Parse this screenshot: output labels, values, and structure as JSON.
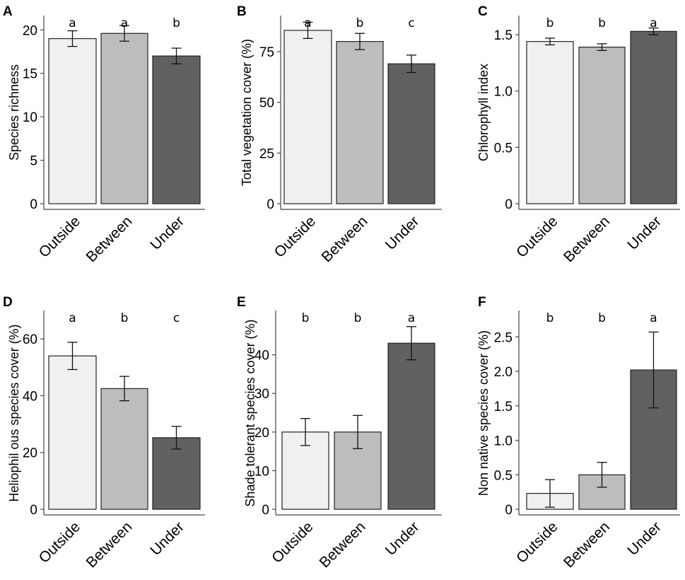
{
  "figure_colors": {
    "Outside": "#f0f0f0",
    "Between": "#bdbdbd",
    "Under": "#616161"
  },
  "chart_data": [
    {
      "type": "bar",
      "panel": "A",
      "ylabel": "Species richness",
      "categories": [
        "Outside",
        "Between",
        "Under"
      ],
      "values": [
        19.0,
        19.6,
        17.0
      ],
      "errors": [
        0.9,
        0.9,
        0.9
      ],
      "significance": [
        "a",
        "a",
        "b"
      ],
      "ylim": [
        0,
        21
      ],
      "yticks": [
        0,
        5,
        10,
        15,
        20
      ],
      "ytick_labels": [
        "0",
        "5",
        "10",
        "15",
        "20"
      ]
    },
    {
      "type": "bar",
      "panel": "B",
      "ylabel": "Total vegetation cover (%)",
      "categories": [
        "Outside",
        "Between",
        "Under"
      ],
      "values": [
        85.5,
        80.0,
        69.0
      ],
      "errors": [
        4.0,
        4.0,
        4.3
      ],
      "significance": [
        "a",
        "b",
        "c"
      ],
      "ylim": [
        0,
        90
      ],
      "yticks": [
        0,
        25,
        50,
        75
      ],
      "ytick_labels": [
        "0",
        "25",
        "50",
        "75"
      ]
    },
    {
      "type": "bar",
      "panel": "C",
      "ylabel": "Chlorophyll index",
      "categories": [
        "Outside",
        "Between",
        "Under"
      ],
      "values": [
        1.44,
        1.39,
        1.53
      ],
      "errors": [
        0.03,
        0.03,
        0.03
      ],
      "significance": [
        "b",
        "b",
        "a"
      ],
      "ylim": [
        0,
        1.62
      ],
      "yticks": [
        0,
        0.5,
        1.0,
        1.5
      ],
      "ytick_labels": [
        "0",
        "0.5",
        "1.0",
        "1.5"
      ]
    },
    {
      "type": "bar",
      "panel": "D",
      "ylabel": "Heliophil ous species cover (%)",
      "categories": [
        "Outside",
        "Between",
        "Under"
      ],
      "values": [
        54.0,
        42.5,
        25.2
      ],
      "errors": [
        4.8,
        4.3,
        4.0
      ],
      "significance": [
        "a",
        "b",
        "c"
      ],
      "ylim": [
        0,
        68
      ],
      "yticks": [
        0,
        20,
        40,
        60
      ],
      "ytick_labels": [
        "0",
        "20",
        "40",
        "60"
      ]
    },
    {
      "type": "bar",
      "panel": "E",
      "ylabel": "Shade tolerant species cover (%)",
      "categories": [
        "Outside",
        "Between",
        "Under"
      ],
      "values": [
        20.0,
        20.0,
        43.0
      ],
      "errors": [
        3.5,
        4.3,
        4.3
      ],
      "significance": [
        "b",
        "b",
        "a"
      ],
      "ylim": [
        0,
        50
      ],
      "yticks": [
        0,
        10,
        20,
        30,
        40
      ],
      "ytick_labels": [
        "0",
        "10",
        "20",
        "30",
        "40"
      ]
    },
    {
      "type": "bar",
      "panel": "F",
      "ylabel": "Non native species cover (%)",
      "categories": [
        "Outside",
        "Between",
        "Under"
      ],
      "values": [
        0.23,
        0.5,
        2.02
      ],
      "errors": [
        0.2,
        0.18,
        0.55
      ],
      "significance": [
        "b",
        "b",
        "a"
      ],
      "ylim": [
        0,
        2.8
      ],
      "yticks": [
        0,
        0.5,
        1.0,
        1.5,
        2.0,
        2.5
      ],
      "ytick_labels": [
        "0",
        "0.5",
        "1.0",
        "1.5",
        "2.0",
        "2.5"
      ]
    }
  ]
}
